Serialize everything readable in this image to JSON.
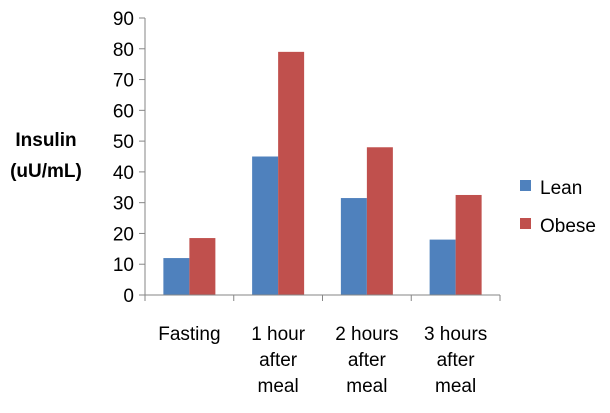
{
  "chart_data": {
    "type": "bar",
    "title": "",
    "xlabel": "",
    "ylabel_lines": [
      "Insulin",
      "(uU/mL)"
    ],
    "categories": [
      [
        "Fasting"
      ],
      [
        "1 hour",
        "after",
        "meal"
      ],
      [
        "2 hours",
        "after",
        "meal"
      ],
      [
        "3 hours",
        "after",
        "meal"
      ]
    ],
    "series": [
      {
        "name": "Lean",
        "color": "#4f81bd",
        "values": [
          12,
          45,
          31.5,
          18
        ]
      },
      {
        "name": "Obese",
        "color": "#c0504d",
        "values": [
          18.5,
          79,
          48,
          32.5
        ]
      }
    ],
    "ylim": [
      0,
      90
    ],
    "yticks": [
      0,
      10,
      20,
      30,
      40,
      50,
      60,
      70,
      80,
      90
    ],
    "grid": false,
    "legend": "right"
  }
}
